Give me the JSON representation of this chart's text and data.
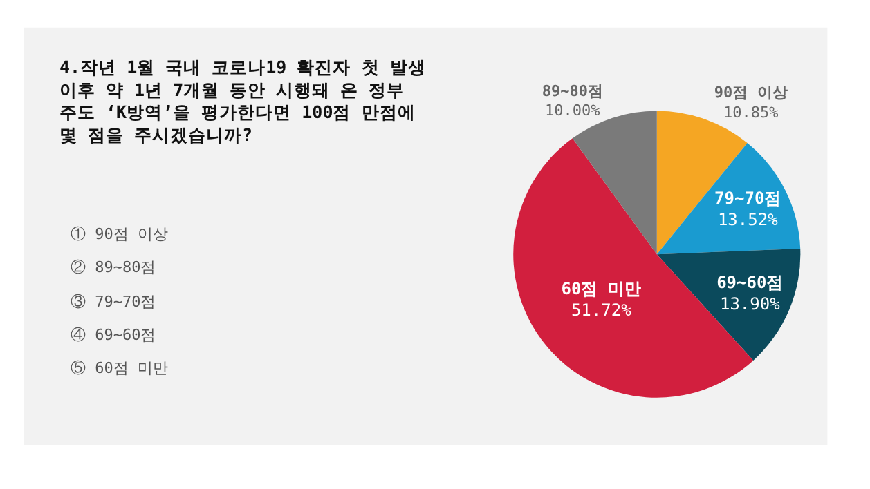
{
  "chart_data": {
    "type": "pie",
    "title": "4.작년 1월 국내 코로나19 확진자 첫 발생 이후 약 1년 7개월 동안 시행돼 온 정부 주도 ‘K방역’을 평가한다면 100점 만점에 몇 점을 주시겠습니까?",
    "categories": [
      "90점 이상",
      "79~70점",
      "69~60점",
      "60점 미만",
      "89~80점"
    ],
    "values": [
      10.85,
      13.52,
      13.9,
      51.72,
      10.0
    ],
    "value_labels": [
      "10.85%",
      "13.52%",
      "13.90%",
      "51.72%",
      "10.00%"
    ],
    "colors": [
      "#f5a623",
      "#1a9bd0",
      "#0b4a5c",
      "#d21f3e",
      "#7a7a7a"
    ],
    "legend": false,
    "annotations": [
      "① 90점 이상",
      "② 89~80점",
      "③ 79~70점",
      "④ 69~60점",
      "⑤ 60점 미만"
    ]
  }
}
